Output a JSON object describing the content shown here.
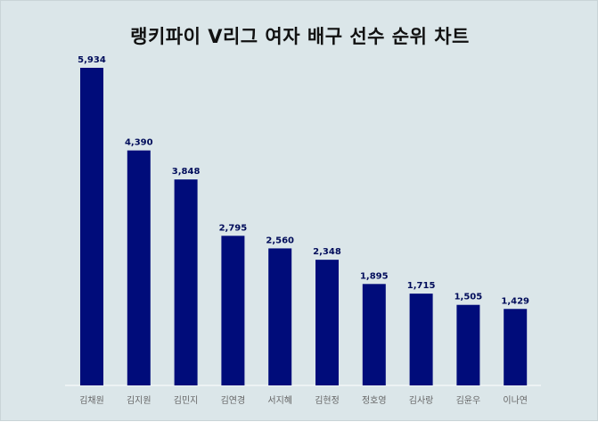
{
  "chart_data": {
    "type": "bar",
    "title": "랭키파이 V리그 여자 배구 선수 순위 차트",
    "categories": [
      "김채원",
      "김지원",
      "김민지",
      "김연경",
      "서지혜",
      "김현정",
      "정호영",
      "김사랑",
      "김윤우",
      "이나연"
    ],
    "values": [
      5934,
      4390,
      3848,
      2795,
      2560,
      2348,
      1895,
      1715,
      1505,
      1429
    ],
    "value_labels": [
      "5,934",
      "4,390",
      "3,848",
      "2,795",
      "2,560",
      "2,348",
      "1,895",
      "1,715",
      "1,505",
      "1,429"
    ],
    "xlabel": "",
    "ylabel": "",
    "ylim": [
      0,
      5934
    ],
    "grid": false,
    "legend": "none",
    "bar_color": "#000c7a",
    "background_color": "#dbe6e9"
  }
}
